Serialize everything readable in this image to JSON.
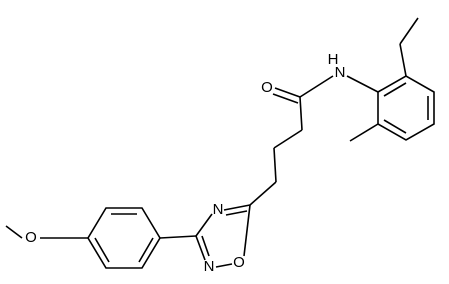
{
  "atoms": [
    "O",
    "H",
    "N",
    "N",
    "O",
    "N",
    "O"
  ]
}
